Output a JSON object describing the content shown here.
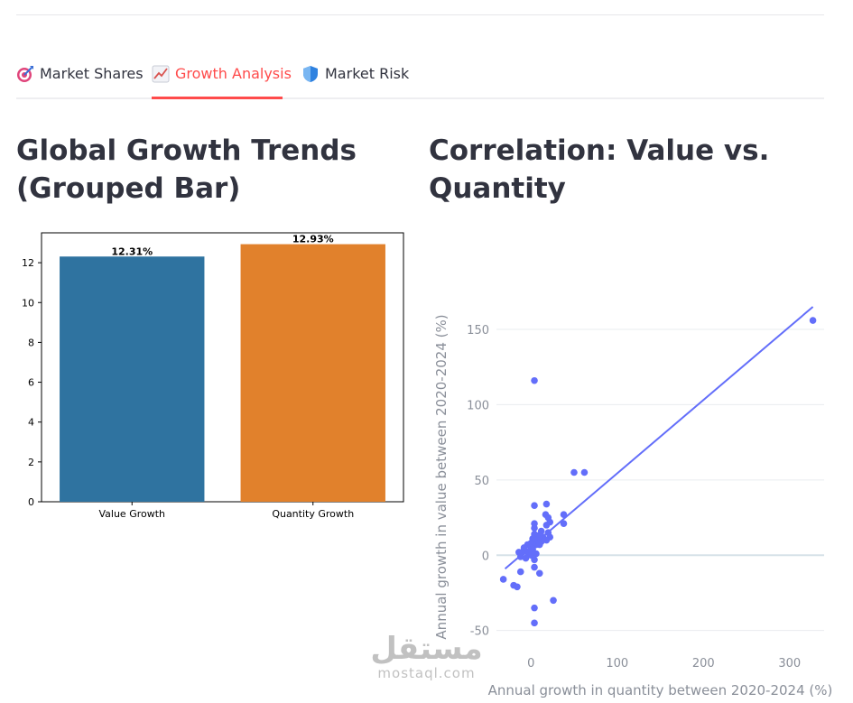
{
  "tabs": [
    {
      "label": "Market Shares",
      "icon": "target-icon"
    },
    {
      "label": "Growth Analysis",
      "icon": "chart-increasing-icon",
      "active": true
    },
    {
      "label": "Market Risk",
      "icon": "shield-icon"
    }
  ],
  "sections": {
    "left_title": "Global Growth Trends (Grouped Bar)",
    "right_title": "Correlation: Value vs. Quantity"
  },
  "colors": {
    "accent": "#ff4b4b",
    "bar_value": "#2f73a0",
    "bar_quantity": "#e1812c",
    "scatter": "#636efa"
  },
  "chart_data": [
    {
      "type": "bar",
      "categories": [
        "Value Growth",
        "Quantity Growth"
      ],
      "values": [
        12.31,
        12.93
      ],
      "data_labels": [
        "12.31%",
        "12.93%"
      ],
      "ylim": [
        0,
        13.5
      ],
      "yticks": [
        0,
        2,
        4,
        6,
        8,
        10,
        12
      ],
      "grid": false
    },
    {
      "type": "scatter",
      "xlabel": "Annual growth in quantity between 2020-2024 (%)",
      "ylabel": "Annual growth in value between 2020-2024 (%)",
      "xlim": [
        -40,
        340
      ],
      "ylim": [
        -55,
        165
      ],
      "xticks": [
        0,
        100,
        200,
        300
      ],
      "yticks": [
        -50,
        0,
        50,
        100,
        150
      ],
      "grid": true,
      "trendline": {
        "x": [
          -30,
          327
        ],
        "y": [
          -9,
          165
        ]
      },
      "points": [
        [
          327,
          156
        ],
        [
          4,
          116
        ],
        [
          50,
          55
        ],
        [
          62,
          55
        ],
        [
          4,
          33
        ],
        [
          18,
          34
        ],
        [
          38,
          27
        ],
        [
          38,
          21
        ],
        [
          17,
          27
        ],
        [
          20,
          25
        ],
        [
          22,
          22
        ],
        [
          4,
          21
        ],
        [
          18,
          20
        ],
        [
          4,
          18
        ],
        [
          12,
          16
        ],
        [
          20,
          15
        ],
        [
          4,
          14
        ],
        [
          8,
          13
        ],
        [
          14,
          12
        ],
        [
          22,
          12
        ],
        [
          2,
          11
        ],
        [
          6,
          10
        ],
        [
          12,
          9
        ],
        [
          18,
          10
        ],
        [
          0,
          8
        ],
        [
          6,
          7
        ],
        [
          10,
          7
        ],
        [
          -4,
          7
        ],
        [
          0,
          5
        ],
        [
          -8,
          5
        ],
        [
          2,
          4
        ],
        [
          -10,
          2
        ],
        [
          -4,
          2
        ],
        [
          -14,
          2
        ],
        [
          6,
          1
        ],
        [
          0,
          0
        ],
        [
          -12,
          -1
        ],
        [
          -6,
          -2
        ],
        [
          4,
          -3
        ],
        [
          4,
          -8
        ],
        [
          -12,
          -11
        ],
        [
          10,
          -12
        ],
        [
          -32,
          -16
        ],
        [
          -20,
          -20
        ],
        [
          -16,
          -21
        ],
        [
          26,
          -30
        ],
        [
          4,
          -35
        ],
        [
          4,
          -45
        ]
      ]
    }
  ],
  "watermark": {
    "arabic": "مستقل",
    "latin": "mostaql.com"
  }
}
